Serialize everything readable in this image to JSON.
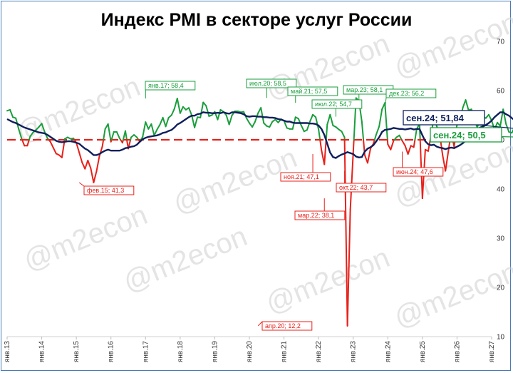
{
  "chart_data": {
    "type": "line",
    "title": "Индекс PMI в секторе услуг России",
    "ylim": [
      10,
      70
    ],
    "yticks": [
      10,
      20,
      30,
      40,
      50,
      60,
      70
    ],
    "x_tick_labels": [
      "янв.13",
      "янв.14",
      "янв.15",
      "янв.16",
      "янв.17",
      "янв.18",
      "янв.19",
      "янв.20",
      "янв.21",
      "янв.22",
      "янв.23",
      "янв.24",
      "янв.25",
      "янв.26",
      "янв.27"
    ],
    "threshold": 50,
    "colors": {
      "above": "#1a9e3c",
      "below": "#e8201a",
      "average": "#0f1f5c",
      "threshold": "#e8201a"
    },
    "series": [
      {
        "values": [
          55.9,
          56.1,
          54.6,
          54.4,
          52.2,
          50.3,
          48.8,
          48.8,
          50.7,
          51.5,
          52.0,
          52.6,
          53.3,
          51.6,
          50.3,
          49.6,
          48.4,
          47.2,
          46.9,
          46.4,
          50.2,
          50.5,
          50.2,
          50.3,
          49.4,
          47.4,
          45.4,
          44.1,
          45.8,
          44.2,
          41.3,
          43.6,
          46.7,
          48.6,
          52.2,
          53.2,
          49.6,
          51.6,
          51.6,
          50.3,
          49.4,
          51.8,
          48.2,
          50.5,
          51.0,
          50.5,
          49.6,
          50.6,
          53.6,
          52.2,
          53.2,
          50.9,
          52.1,
          53.1,
          54.5,
          52.7,
          54.5,
          55.0,
          56.3,
          58.4,
          55.4,
          56.7,
          56.1,
          56.5,
          55.0,
          52.5,
          54.6,
          54.5,
          57.6,
          56.9,
          54.8,
          55.0,
          55.7,
          54.1,
          56.1,
          55.7,
          55.0,
          53.1,
          55.0,
          55.8,
          55.8,
          55.6,
          55.7,
          54.4,
          53.4,
          52.6,
          53.7,
          55.4,
          56.5,
          53.4,
          52.8,
          52.6,
          53.7,
          54.1,
          53.5,
          54.2,
          53.9,
          52.4,
          52.2,
          52.2,
          54.6,
          54.3,
          52.9,
          51.7,
          52.0,
          53.7,
          55.1,
          54.6,
          52.1,
          47.9,
          45.0,
          53.1,
          55.1,
          52.9,
          52.6,
          52.1,
          51.7,
          50.5,
          12.2,
          35.9,
          47.3,
          58.5,
          57.9,
          53.7,
          46.9,
          45.3,
          48.2,
          49.2,
          51.1,
          52.7,
          56.2,
          57.5,
          49.1,
          48.0,
          49.8,
          50.5,
          50.9,
          49.8,
          48.8,
          47.1,
          48.8,
          48.5,
          52.1,
          53.3,
          38.1,
          48.0,
          47.7,
          50.9,
          54.7,
          52.7,
          51.1,
          46.9,
          43.7,
          47.7,
          51.6,
          48.6,
          53.1,
          53.7,
          56.5,
          58.1,
          56.0,
          56.2,
          54.2,
          52.5,
          54.1,
          54.7,
          54.4,
          55.1,
          53.9,
          52.1,
          53.5,
          52.8,
          56.2,
          53.2,
          51.6,
          51.4,
          52.6,
          51.4,
          47.6,
          52.1,
          51.0,
          50.5
        ],
        "start": "янв.13",
        "frequency": "monthly"
      },
      {
        "values": [
          54.2,
          53.9,
          53.6,
          53.4,
          53.1,
          52.8,
          52.5,
          52.3,
          52.1,
          51.9,
          51.7,
          51.5,
          51.4,
          51.3,
          51.0,
          50.6,
          50.2,
          49.8,
          49.6,
          49.5,
          49.6,
          49.7,
          49.7,
          49.6,
          49.4,
          49.2,
          48.7,
          48.2,
          47.9,
          47.4,
          46.9,
          46.9,
          47.1,
          47.5,
          47.8,
          48.0,
          47.8,
          47.8,
          47.8,
          47.8,
          48.0,
          48.3,
          48.4,
          48.6,
          48.7,
          49.0,
          49.6,
          50.1,
          50.4,
          50.6,
          50.7,
          50.8,
          50.9,
          51.1,
          51.4,
          51.5,
          51.8,
          52.0,
          52.5,
          53.1,
          53.4,
          53.8,
          54.2,
          54.6,
          54.9,
          54.9,
          55.2,
          55.3,
          55.6,
          55.5,
          55.5,
          55.4,
          55.4,
          55.5,
          55.4,
          55.6,
          55.4,
          55.3,
          55.6,
          55.6,
          55.5,
          55.4,
          55.2,
          54.8,
          54.7,
          54.8,
          54.8,
          54.7,
          54.7,
          54.6,
          54.6,
          54.5,
          54.5,
          54.4,
          54.2,
          54.1,
          53.9,
          53.7,
          53.7,
          53.5,
          53.4,
          53.4,
          53.4,
          53.4,
          53.4,
          53.3,
          53.3,
          53.2,
          52.9,
          52.2,
          51.0,
          49.2,
          47.4,
          46.5,
          46.3,
          46.7,
          47.0,
          47.2,
          47.5,
          47.3,
          47.1,
          46.6,
          46.4,
          46.5,
          47.6,
          48.2,
          48.5,
          48.9,
          49.7,
          50.5,
          51.6,
          52.0,
          52.1,
          52.2,
          52.4,
          52.3,
          52.2,
          52.2,
          52.1,
          52.2,
          52.3,
          52.1,
          52.2,
          52.2,
          50.9,
          49.7,
          49.1,
          48.9,
          49.0,
          48.6,
          48.4,
          48.3,
          48.1,
          48.3,
          48.4,
          48.3,
          48.6,
          48.9,
          49.3,
          49.8,
          50.6,
          51.4,
          51.8,
          52.2,
          52.5,
          52.7,
          53.0,
          53.4,
          53.9,
          54.6,
          55.1,
          55.6,
          55.6,
          55.2,
          54.9,
          54.4,
          54.0,
          53.6,
          53.2,
          52.9,
          52.7,
          52.2,
          51.8,
          51.9
        ],
        "start": "янв.13",
        "frequency": "monthly"
      }
    ],
    "annotations": [
      {
        "label": "фев.15; 41,3",
        "x": 25,
        "y": 41.3,
        "type": "below"
      },
      {
        "label": "янв.17; 58,4",
        "x": 48,
        "y": 58.4,
        "type": "above"
      },
      {
        "label": "июл.20; 58,5",
        "x": 90,
        "y": 58.5,
        "type": "above"
      },
      {
        "label": "апр.20; 12,2",
        "x": 87,
        "y": 12.2,
        "type": "below"
      },
      {
        "label": "май.21; 57,5",
        "x": 100,
        "y": 57.5,
        "type": "above"
      },
      {
        "label": "ноя.21; 47,1",
        "x": 106,
        "y": 47.1,
        "type": "below"
      },
      {
        "label": "июл.22; 54,7",
        "x": 114,
        "y": 54.7,
        "type": "above"
      },
      {
        "label": "мар.22; 38,1",
        "x": 110,
        "y": 38.1,
        "type": "below"
      },
      {
        "label": "окт.22; 43,7",
        "x": 117,
        "y": 43.7,
        "type": "below"
      },
      {
        "label": "мар.23; 58,1",
        "x": 122,
        "y": 58.1,
        "type": "above"
      },
      {
        "label": "дек.23; 56,2",
        "x": 131,
        "y": 56.2,
        "type": "above"
      },
      {
        "label": "июн.24; 47,6",
        "x": 137,
        "y": 47.6,
        "type": "below"
      }
    ],
    "callouts": [
      {
        "label": "сен.24; 51,84",
        "series": "average"
      },
      {
        "label": "сен.24; 50,5",
        "series": "actual"
      }
    ]
  },
  "watermark": "@m2econ"
}
